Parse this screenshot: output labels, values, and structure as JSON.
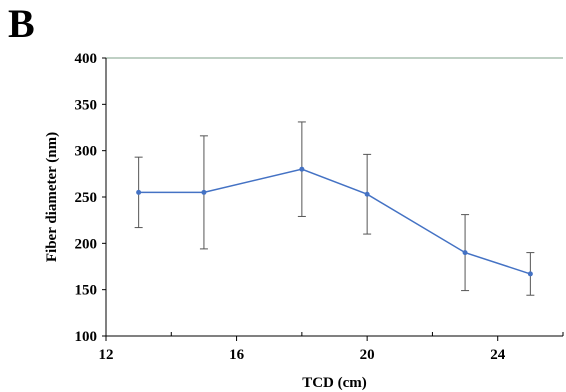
{
  "panel_label": "B",
  "chart_data": {
    "type": "line",
    "title": "",
    "xlabel": "TCD (cm)",
    "ylabel": "Fiber diameter (nm)",
    "xlim": [
      12,
      26
    ],
    "ylim": [
      100,
      400
    ],
    "x_ticks": [
      12,
      16,
      20,
      24
    ],
    "y_ticks": [
      100,
      150,
      200,
      250,
      300,
      350,
      400
    ],
    "grid": false,
    "line_color": "#4472c4",
    "series": [
      {
        "x": [
          13,
          15,
          18,
          20,
          23,
          25
        ],
        "values": [
          255,
          255,
          280,
          253,
          190,
          167
        ],
        "errors": [
          38,
          61,
          51,
          43,
          41,
          23
        ]
      }
    ]
  }
}
